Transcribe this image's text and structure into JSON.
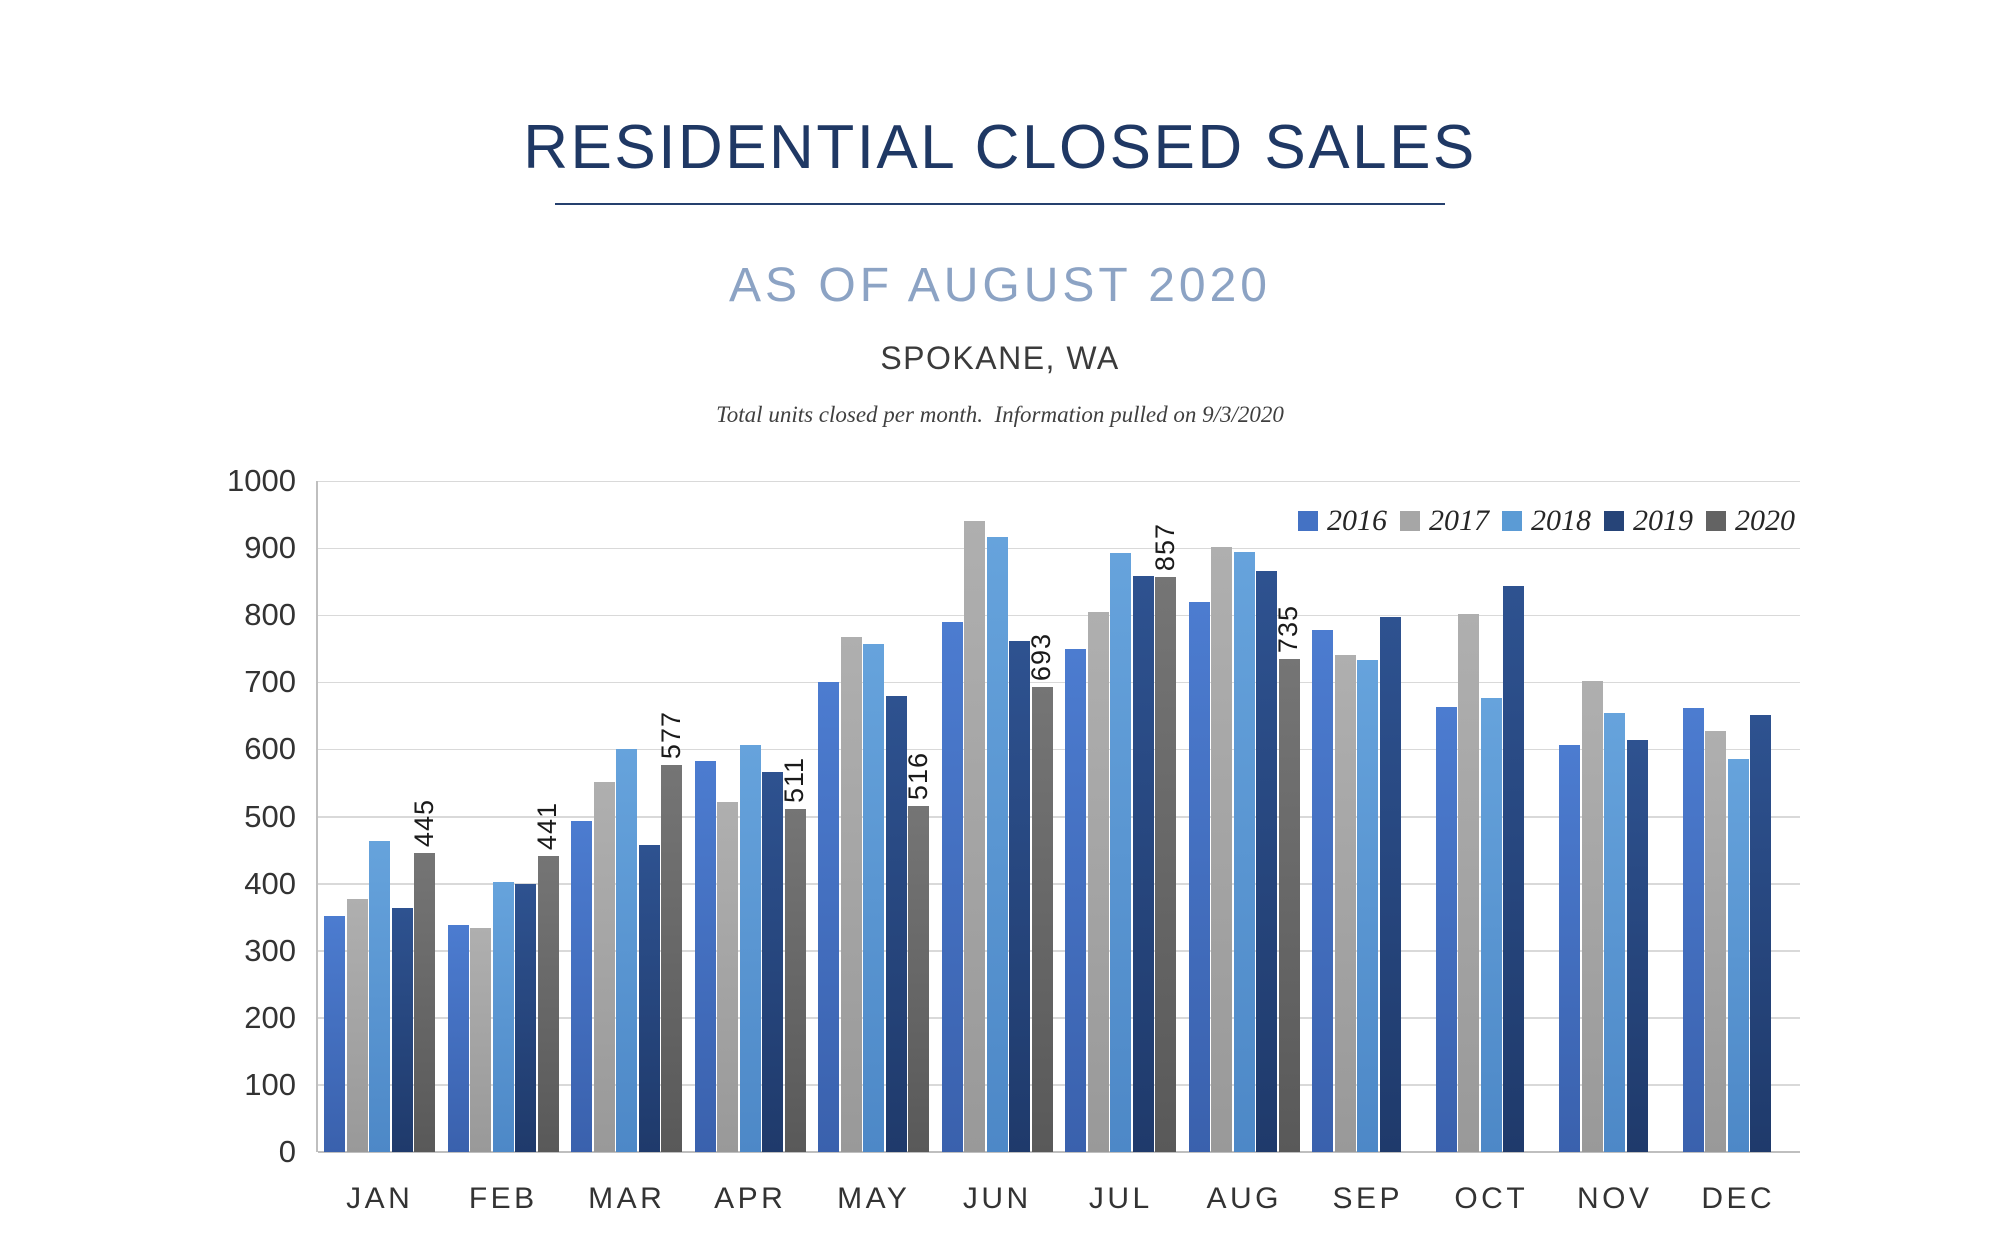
{
  "header": {
    "title": "RESIDENTIAL CLOSED SALES",
    "subtitle": "AS OF AUGUST 2020",
    "location": "SPOKANE, WA",
    "note": "Total units closed per month.  Information pulled on 9/3/2020"
  },
  "chart_data": {
    "type": "bar",
    "title": "RESIDENTIAL CLOSED SALES",
    "subtitle": "AS OF AUGUST 2020",
    "categories": [
      "JAN",
      "FEB",
      "MAR",
      "APR",
      "MAY",
      "JUN",
      "JUL",
      "AUG",
      "SEP",
      "OCT",
      "NOV",
      "DEC"
    ],
    "series": [
      {
        "name": "2016",
        "color": "#4472C4",
        "color_light": "#4C7CD0",
        "color_dark": "#3A61AD",
        "values": [
          351,
          338,
          493,
          583,
          700,
          790,
          749,
          819,
          778,
          663,
          606,
          662
        ]
      },
      {
        "name": "2017",
        "color": "#A6A6A6",
        "color_light": "#AFAFAF",
        "color_dark": "#999999",
        "values": [
          377,
          334,
          552,
          522,
          768,
          940,
          805,
          901,
          740,
          802,
          702,
          627
        ]
      },
      {
        "name": "2018",
        "color": "#5B9BD5",
        "color_light": "#66A3DC",
        "color_dark": "#4D88C7",
        "values": [
          463,
          403,
          601,
          607,
          757,
          916,
          893,
          894,
          734,
          677,
          654,
          586
        ]
      },
      {
        "name": "2019",
        "color": "#264478",
        "color_light": "#2E5290",
        "color_dark": "#1F3A6B",
        "values": [
          364,
          400,
          458,
          567,
          680,
          761,
          858,
          866,
          797,
          843,
          614,
          652
        ]
      },
      {
        "name": "2020",
        "color": "#636363",
        "color_light": "#757575",
        "color_dark": "#595959",
        "values": [
          445,
          441,
          577,
          511,
          516,
          693,
          857,
          735,
          null,
          null,
          null,
          null
        ],
        "data_labels": true
      }
    ],
    "ylim": [
      0,
      1000
    ],
    "yticks": [
      0,
      100,
      200,
      300,
      400,
      500,
      600,
      700,
      800,
      900,
      1000
    ],
    "xlabel": "",
    "ylabel": "",
    "grid": "horizontal",
    "gridline_color": "#D9D9D9",
    "axis_color": "#BFBFBF",
    "legend_position": "top-right"
  }
}
